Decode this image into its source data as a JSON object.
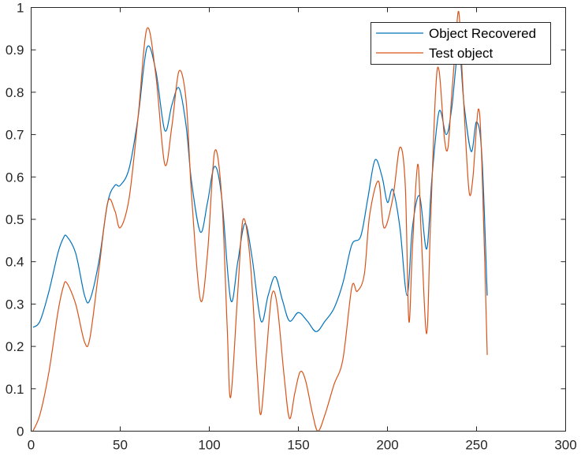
{
  "chart_data": {
    "type": "line",
    "title": "",
    "xlabel": "",
    "ylabel": "",
    "xlim": [
      0,
      300
    ],
    "ylim": [
      0,
      1
    ],
    "xticks": [
      0,
      50,
      100,
      150,
      200,
      250,
      300
    ],
    "yticks": [
      0,
      0.1,
      0.2,
      0.3,
      0.4,
      0.5,
      0.6,
      0.7,
      0.8,
      0.9,
      1
    ],
    "grid": false,
    "legend_location": "top-right",
    "series": [
      {
        "name": "Object Recovered",
        "color": "#0072BD",
        "x": [
          1,
          5,
          10,
          15,
          18,
          20,
          25,
          30,
          33,
          38,
          43,
          47,
          50,
          55,
          60,
          65,
          70,
          75,
          79,
          83,
          87,
          90,
          95,
          99,
          103,
          107,
          112,
          116,
          120,
          124,
          129,
          133,
          137,
          141,
          145,
          150,
          155,
          160,
          165,
          170,
          175,
          180,
          185,
          189,
          193,
          197,
          200,
          203,
          207,
          211,
          214,
          218,
          222,
          225,
          229,
          233,
          236,
          240,
          243,
          247,
          250,
          253,
          256
        ],
        "y": [
          0.245,
          0.26,
          0.33,
          0.42,
          0.455,
          0.46,
          0.42,
          0.32,
          0.31,
          0.4,
          0.54,
          0.58,
          0.58,
          0.62,
          0.74,
          0.905,
          0.85,
          0.71,
          0.77,
          0.81,
          0.72,
          0.59,
          0.47,
          0.54,
          0.625,
          0.55,
          0.31,
          0.4,
          0.49,
          0.41,
          0.26,
          0.32,
          0.365,
          0.31,
          0.26,
          0.28,
          0.26,
          0.235,
          0.26,
          0.29,
          0.35,
          0.44,
          0.46,
          0.55,
          0.64,
          0.6,
          0.54,
          0.57,
          0.48,
          0.32,
          0.48,
          0.555,
          0.43,
          0.6,
          0.755,
          0.7,
          0.76,
          0.905,
          0.77,
          0.66,
          0.73,
          0.65,
          0.32
        ]
      },
      {
        "name": "Test object",
        "color": "#D95319",
        "x": [
          1,
          5,
          10,
          15,
          18,
          20,
          25,
          30,
          33,
          38,
          43,
          47,
          50,
          55,
          60,
          65,
          70,
          75,
          79,
          83,
          87,
          90,
          95,
          99,
          103,
          107,
          110,
          112,
          116,
          119,
          123,
          127,
          129,
          132,
          135,
          138,
          142,
          145,
          148,
          151,
          154,
          158,
          161,
          165,
          170,
          175,
          180,
          183,
          187,
          190,
          195,
          198,
          203,
          207,
          210,
          212,
          214,
          217,
          219,
          222,
          224,
          227,
          229,
          232,
          234,
          236,
          238,
          240,
          242,
          244,
          246,
          248,
          251,
          253,
          256
        ],
        "y": [
          0.0,
          0.04,
          0.14,
          0.28,
          0.34,
          0.35,
          0.3,
          0.21,
          0.22,
          0.38,
          0.54,
          0.52,
          0.48,
          0.55,
          0.74,
          0.95,
          0.84,
          0.63,
          0.72,
          0.85,
          0.78,
          0.56,
          0.31,
          0.42,
          0.66,
          0.55,
          0.25,
          0.08,
          0.33,
          0.5,
          0.4,
          0.13,
          0.04,
          0.18,
          0.32,
          0.3,
          0.13,
          0.03,
          0.09,
          0.14,
          0.12,
          0.04,
          0.0,
          0.04,
          0.11,
          0.17,
          0.34,
          0.33,
          0.37,
          0.51,
          0.59,
          0.48,
          0.55,
          0.67,
          0.58,
          0.26,
          0.43,
          0.63,
          0.46,
          0.23,
          0.47,
          0.8,
          0.85,
          0.69,
          0.67,
          0.79,
          0.9,
          0.99,
          0.84,
          0.68,
          0.56,
          0.6,
          0.76,
          0.63,
          0.18
        ]
      }
    ]
  }
}
